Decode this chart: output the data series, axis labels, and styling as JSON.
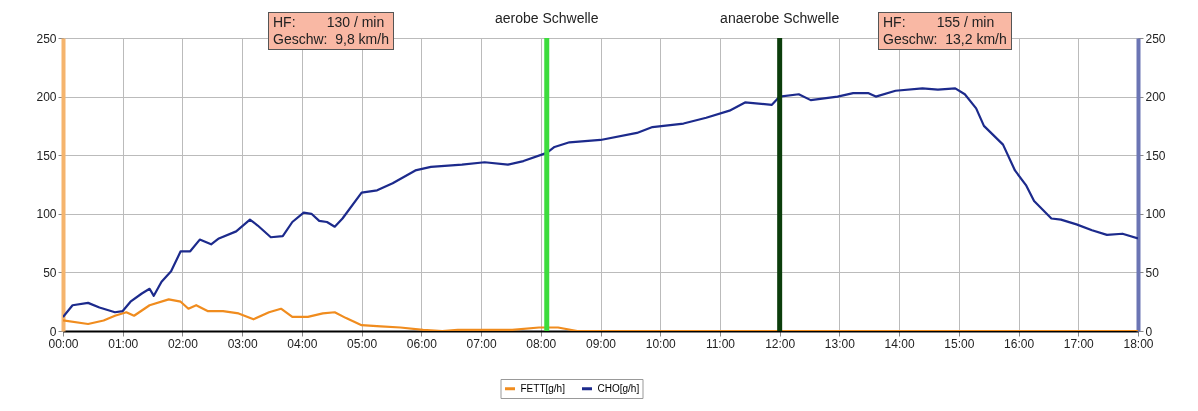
{
  "chart_data": {
    "type": "line",
    "xlim": [
      0,
      18
    ],
    "xticks": [
      {
        "value": 0,
        "label": "00:00"
      },
      {
        "value": 1,
        "label": "01:00"
      },
      {
        "value": 2,
        "label": "02:00"
      },
      {
        "value": 3,
        "label": "03:00"
      },
      {
        "value": 4,
        "label": "04:00"
      },
      {
        "value": 5,
        "label": "05:00"
      },
      {
        "value": 6,
        "label": "06:00"
      },
      {
        "value": 7,
        "label": "07:00"
      },
      {
        "value": 8,
        "label": "08:00"
      },
      {
        "value": 9,
        "label": "09:00"
      },
      {
        "value": 10,
        "label": "10:00"
      },
      {
        "value": 11,
        "label": "11:00"
      },
      {
        "value": 12,
        "label": "12:00"
      },
      {
        "value": 13,
        "label": "13:00"
      },
      {
        "value": 14,
        "label": "14:00"
      },
      {
        "value": 15,
        "label": "15:00"
      },
      {
        "value": 16,
        "label": "16:00"
      },
      {
        "value": 17,
        "label": "17:00"
      },
      {
        "value": 18,
        "label": "18:00"
      }
    ],
    "ylim": [
      0,
      250
    ],
    "yticks": [
      0,
      50,
      100,
      150,
      200,
      250
    ],
    "y2lim": [
      0,
      250
    ],
    "y2ticks": [
      0,
      50,
      100,
      150,
      200,
      250
    ],
    "grid": true,
    "legend": "bottom",
    "series": [
      {
        "name": "FETT[g/h]",
        "color": "#f08c1e",
        "x": [
          0,
          0.42,
          0.68,
          0.87,
          1.06,
          1.19,
          1.45,
          1.77,
          1.97,
          2.1,
          2.23,
          2.42,
          2.68,
          2.94,
          3.19,
          3.45,
          3.65,
          3.84,
          4.1,
          4.35,
          4.55,
          4.74,
          5.0,
          5.32,
          5.65,
          6.03,
          6.35,
          6.61,
          7.06,
          7.52,
          7.97,
          8.29,
          8.61,
          10,
          12,
          14,
          16,
          18
        ],
        "values": [
          9,
          6,
          9,
          13,
          16,
          13,
          22,
          27,
          25,
          19,
          22,
          17,
          17,
          15,
          10,
          16,
          19,
          12,
          12,
          15,
          16,
          11,
          5,
          4,
          3,
          1,
          0,
          1,
          1,
          1,
          3,
          3,
          0,
          0,
          0,
          0,
          0,
          0
        ]
      },
      {
        "name": "CHO[g/h]",
        "color": "#1c2a8c",
        "axis": "y2",
        "x": [
          0,
          0.16,
          0.42,
          0.61,
          0.87,
          1.0,
          1.13,
          1.32,
          1.45,
          1.52,
          1.65,
          1.81,
          1.97,
          2.13,
          2.29,
          2.48,
          2.61,
          2.9,
          3.13,
          3.26,
          3.48,
          3.68,
          3.84,
          4.03,
          4.16,
          4.29,
          4.42,
          4.55,
          4.68,
          5.0,
          5.26,
          5.52,
          5.9,
          6.16,
          6.68,
          7.06,
          7.45,
          7.71,
          8.1,
          8.23,
          8.48,
          9.0,
          9.61,
          9.87,
          10.39,
          10.77,
          11.16,
          11.42,
          11.87,
          12.0,
          12.32,
          12.52,
          12.97,
          13.23,
          13.48,
          13.61,
          13.94,
          14.39,
          14.65,
          14.94,
          15.1,
          15.29,
          15.42,
          15.74,
          15.94,
          16.13,
          16.26,
          16.55,
          16.71,
          16.97,
          17.23,
          17.48,
          17.74,
          18.0
        ],
        "values": [
          12,
          22,
          24,
          20,
          16,
          17,
          25,
          32,
          36,
          30,
          42,
          51,
          68,
          68,
          78,
          74,
          79,
          85,
          95,
          90,
          80,
          81,
          93,
          101,
          100,
          94,
          93,
          89,
          96,
          118,
          120,
          126,
          137,
          140,
          142,
          144,
          142,
          145,
          152,
          157,
          161,
          163,
          169,
          174,
          177,
          182,
          188,
          195,
          193,
          200,
          202,
          197,
          200,
          203,
          203,
          200,
          205,
          207,
          206,
          207,
          202,
          190,
          175,
          159,
          137,
          124,
          111,
          96,
          95,
          91,
          86,
          82,
          83,
          79
        ]
      }
    ],
    "ref_lines": [
      {
        "axis": "x",
        "value": 8.1,
        "label": "aerobe Schwelle",
        "color": "#3ddc3d"
      },
      {
        "axis": "x",
        "value": 12,
        "label": "anaerobe Schwelle",
        "color": "#0b3d0b"
      }
    ],
    "annotations": [
      "HF:        130 / min\nGeschw:  9,8 km/h",
      "HF:        155 / min\nGeschw:  13,2 km/h"
    ]
  }
}
